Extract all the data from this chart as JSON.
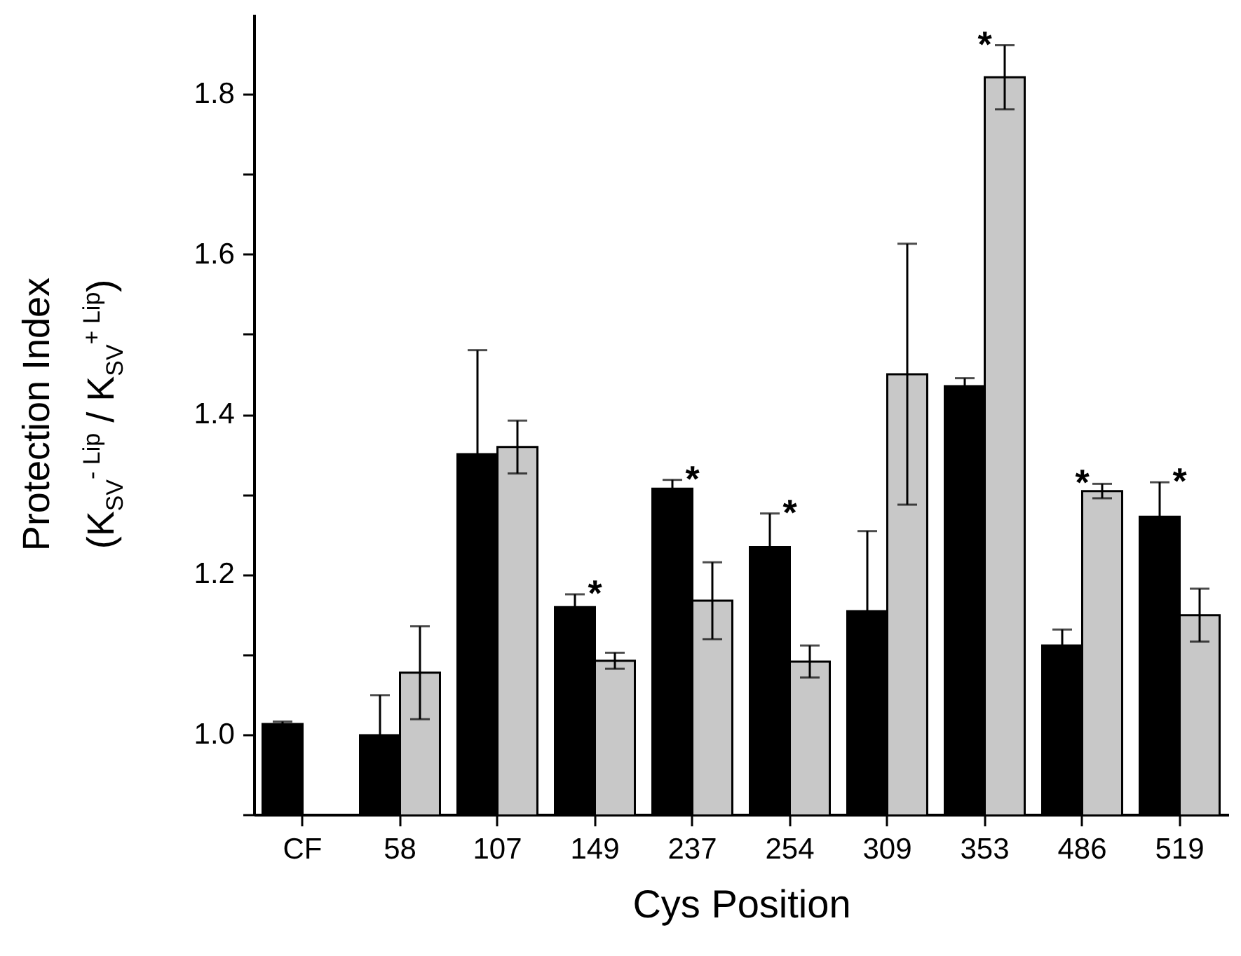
{
  "chart_data": {
    "type": "bar",
    "xlabel": "Cys Position",
    "ylabel": "Protection Index\n(K$_{SV}$$^{- Lip}$ / K$_{SV}$$^{+ Lip}$)",
    "categories": [
      "CF",
      "58",
      "107",
      "149",
      "237",
      "254",
      "309",
      "353",
      "486",
      "519"
    ],
    "series": [
      {
        "color": "#000000",
        "values": [
          1.013,
          0.999,
          1.35,
          1.159,
          1.307,
          1.234,
          1.154,
          1.435,
          1.111,
          1.272
        ],
        "errors": [
          0.003,
          0.05,
          0.13,
          0.016,
          0.011,
          0.042,
          0.1,
          0.01,
          0.02,
          0.043
        ]
      },
      {
        "color": "#c8c8c8",
        "values": [
          null,
          1.077,
          1.359,
          1.092,
          1.167,
          1.091,
          1.45,
          1.821,
          1.304,
          1.149
        ],
        "errors": [
          null,
          0.058,
          0.033,
          0.01,
          0.048,
          0.02,
          0.163,
          0.04,
          0.009,
          0.033
        ]
      }
    ],
    "ylim": [
      0.9,
      1.9
    ],
    "yticks": [
      {
        "value": 0.9,
        "label": null
      },
      {
        "value": 1,
        "label": "1.0"
      },
      {
        "value": 1.1,
        "label": null
      },
      {
        "value": 1.2,
        "label": "1.2"
      },
      {
        "value": 1.3,
        "label": null
      },
      {
        "value": 1.4,
        "label": "1.4"
      },
      {
        "value": 1.5,
        "label": null
      },
      {
        "value": 1.6,
        "label": "1.6"
      },
      {
        "value": 1.7,
        "label": null
      },
      {
        "value": 1.8,
        "label": "1.8"
      }
    ],
    "grid": false,
    "annotations": [
      {
        "text": "*",
        "x": "149",
        "y": 1.159
      },
      {
        "text": "*",
        "x": "237",
        "y": 1.307
      },
      {
        "text": "*",
        "x": "254",
        "y": 1.234
      },
      {
        "text": "*",
        "x": "353",
        "y": 1.821
      },
      {
        "text": "*",
        "x": "486",
        "y": 1.304
      },
      {
        "text": "*",
        "x": "519",
        "y": 1.272
      }
    ]
  }
}
